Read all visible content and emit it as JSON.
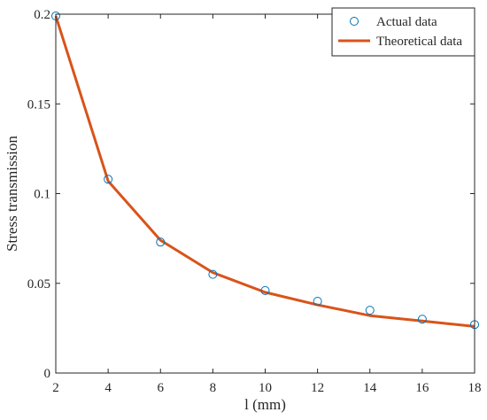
{
  "chart_data": {
    "type": "line",
    "title": "",
    "xlabel": "l (mm)",
    "ylabel": "Stress transmission",
    "xlim": [
      2,
      18
    ],
    "ylim": [
      0,
      0.2
    ],
    "xticks": [
      2,
      4,
      6,
      8,
      10,
      12,
      14,
      16,
      18
    ],
    "yticks": [
      0,
      0.05,
      0.1,
      0.15,
      0.2
    ],
    "xtick_labels": [
      "2",
      "4",
      "6",
      "8",
      "10",
      "12",
      "14",
      "16",
      "18"
    ],
    "ytick_labels": [
      "0",
      "0.05",
      "0.1",
      "0.15",
      "0.2"
    ],
    "grid": false,
    "legend_position": "top-right",
    "series": [
      {
        "name": "Actual data",
        "style": "scatter-open-circle",
        "color": "#0072BD",
        "x": [
          2,
          4,
          6,
          8,
          10,
          12,
          14,
          16,
          18
        ],
        "y": [
          0.199,
          0.108,
          0.073,
          0.055,
          0.046,
          0.04,
          0.035,
          0.03,
          0.027
        ]
      },
      {
        "name": "Theoretical data",
        "style": "line",
        "color": "#D95319",
        "x": [
          2,
          4,
          6,
          8,
          10,
          12,
          14,
          16,
          18
        ],
        "y": [
          0.199,
          0.107,
          0.074,
          0.056,
          0.045,
          0.038,
          0.032,
          0.029,
          0.026
        ]
      }
    ]
  }
}
